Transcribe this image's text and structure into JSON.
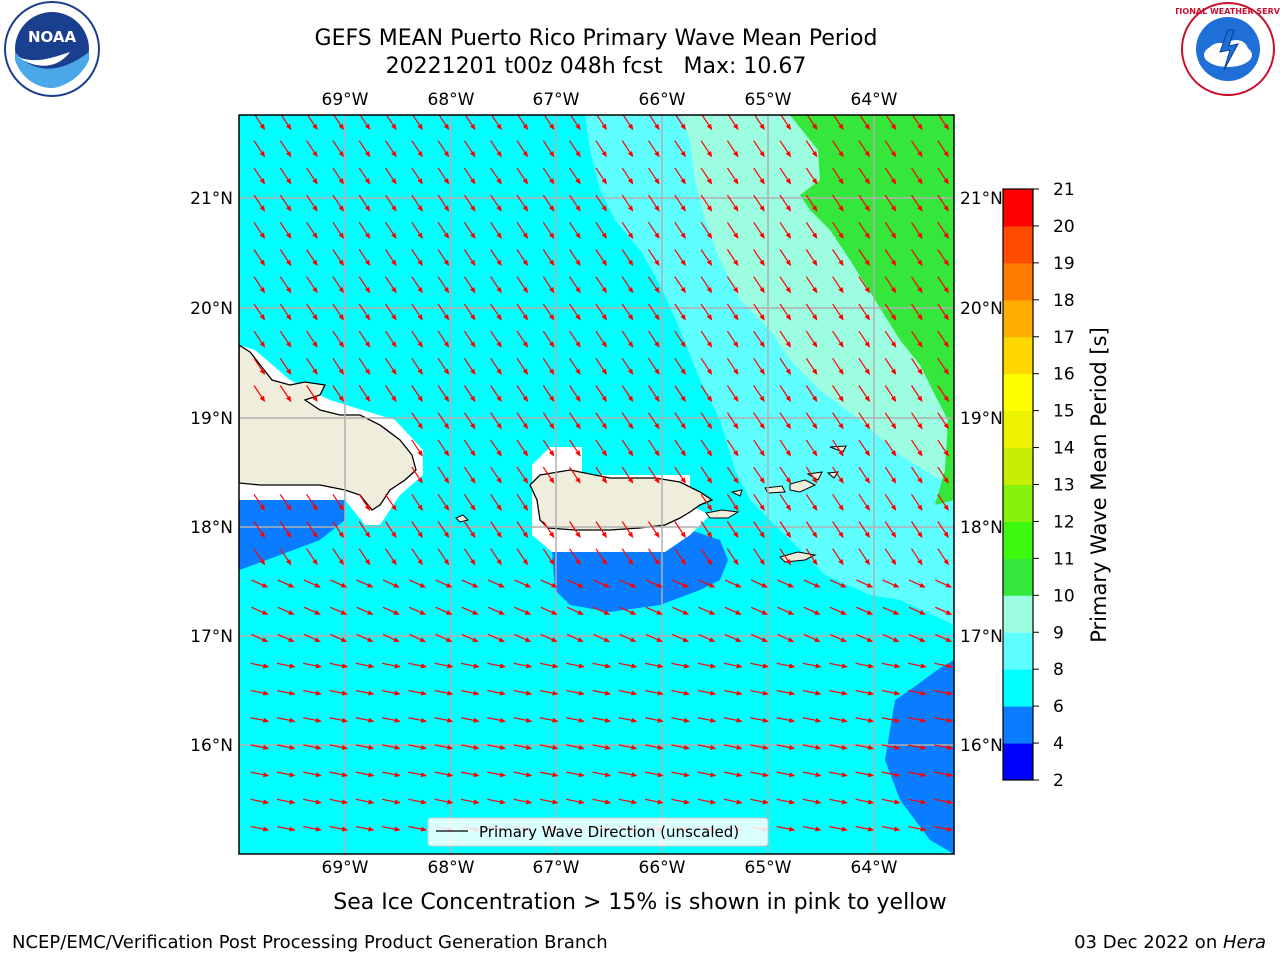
{
  "title": {
    "line1": "GEFS MEAN Puerto Rico Primary Wave Mean Period",
    "line2": "20221201 t00z 048h fcst   Max: 10.67"
  },
  "map": {
    "lon_labels": [
      "69°W",
      "68°W",
      "67°W",
      "66°W",
      "65°W",
      "64°W"
    ],
    "lat_labels": [
      "21°N",
      "20°N",
      "19°N",
      "18°N",
      "17°N",
      "16°N"
    ],
    "legend_label": "Primary Wave Direction (unscaled)",
    "arrow_color": "#ff0000",
    "land_color": "#efeddc"
  },
  "colorbar": {
    "label": "Primary Wave Mean Period [s]",
    "levels": [
      "2",
      "4",
      "6",
      "8",
      "9",
      "10",
      "11",
      "12",
      "13",
      "14",
      "15",
      "16",
      "17",
      "18",
      "19",
      "20",
      "21"
    ],
    "colors": [
      "#0000ff",
      "#0a7cff",
      "#00ffff",
      "#5ffeff",
      "#9dfde1",
      "#35e63b",
      "#3df90e",
      "#86f20c",
      "#c7ee06",
      "#ecf200",
      "#ffff00",
      "#ffd700",
      "#ffad00",
      "#ff7c00",
      "#ff4a00",
      "#ff0000"
    ]
  },
  "logos": {
    "noaa_text": "NOAA",
    "nws_text": "NATIONAL WEATHER SERVICE"
  },
  "notes": {
    "sea_ice": "Sea Ice Concentration > 15% is shown in pink to yellow"
  },
  "footer": {
    "left": "NCEP/EMC/Verification Post Processing Product Generation Branch",
    "date": "03 Dec 2022 on ",
    "host": "Hera"
  }
}
